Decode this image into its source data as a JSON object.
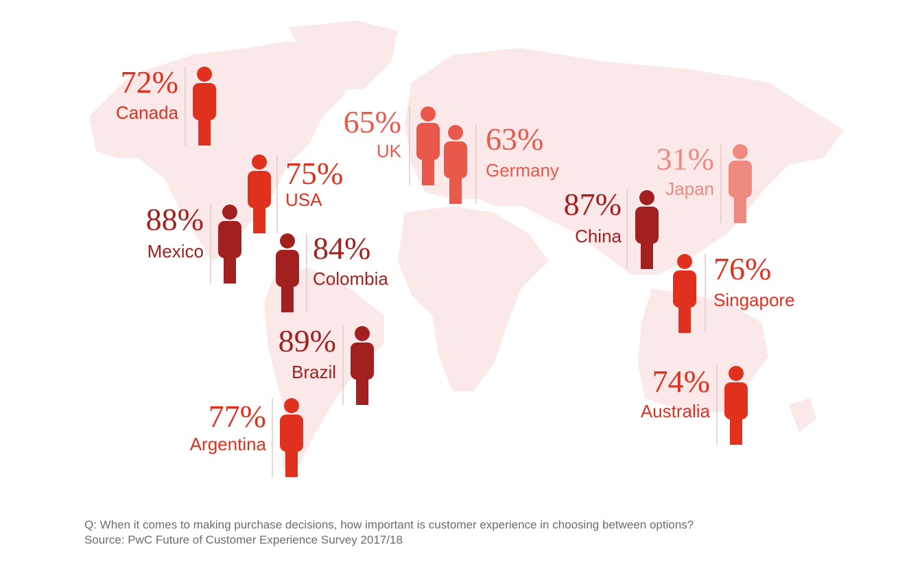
{
  "countries": [
    {
      "name": "Canada",
      "label": "72%",
      "color": "#e0301e"
    },
    {
      "name": "USA",
      "label": "75%",
      "color": "#e0301e"
    },
    {
      "name": "Mexico",
      "label": "88%",
      "color": "#a32020"
    },
    {
      "name": "Colombia",
      "label": "84%",
      "color": "#a32020"
    },
    {
      "name": "Brazil",
      "label": "89%",
      "color": "#a32020"
    },
    {
      "name": "Argentina",
      "label": "77%",
      "color": "#e0301e"
    },
    {
      "name": "UK",
      "label": "65%",
      "color": "#e8594b"
    },
    {
      "name": "Germany",
      "label": "63%",
      "color": "#e8594b"
    },
    {
      "name": "China",
      "label": "87%",
      "color": "#a32020"
    },
    {
      "name": "Japan",
      "label": "31%",
      "color": "#ee8a80"
    },
    {
      "name": "Singapore",
      "label": "76%",
      "color": "#e0301e"
    },
    {
      "name": "Australia",
      "label": "74%",
      "color": "#e0301e"
    }
  ],
  "footnote": {
    "question": "Q: When it comes to making purchase decisions, how important is customer experience in choosing between options?",
    "source": "Source: PwC Future of Customer Experience Survey 2017/18"
  }
}
